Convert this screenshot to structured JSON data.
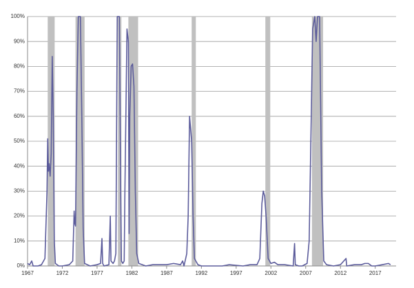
{
  "chart_data": {
    "type": "line",
    "color": "#5b5b9b",
    "recession_color": "#c0c0c0",
    "grid": true,
    "xlim": [
      1967,
      2020
    ],
    "xticks": [
      1967,
      1972,
      1977,
      1982,
      1987,
      1992,
      1997,
      2002,
      2007,
      2012,
      2017
    ],
    "ylim": [
      0,
      100
    ],
    "yticks": [
      {
        "value": 0,
        "label": "0%"
      },
      {
        "value": 10,
        "label": "10%"
      },
      {
        "value": 20,
        "label": "20%"
      },
      {
        "value": 30,
        "label": "30%"
      },
      {
        "value": 40,
        "label": "40%"
      },
      {
        "value": 50,
        "label": "50%"
      },
      {
        "value": 60,
        "label": "60%"
      },
      {
        "value": 70,
        "label": "70%"
      },
      {
        "value": 80,
        "label": "80%"
      },
      {
        "value": 90,
        "label": "90%"
      },
      {
        "value": 100,
        "label": "100%"
      }
    ],
    "recessions": [
      [
        1969.9,
        1970.9
      ],
      [
        1973.9,
        1975.2
      ],
      [
        1980.0,
        1980.5
      ],
      [
        1981.5,
        1982.9
      ],
      [
        1990.6,
        1991.2
      ],
      [
        2001.2,
        2001.9
      ],
      [
        2007.9,
        2009.5
      ]
    ],
    "x": [
      1967.0,
      1967.3,
      1967.6,
      1967.8,
      1968.5,
      1969.0,
      1969.5,
      1969.8,
      1969.9,
      1970.0,
      1970.1,
      1970.25,
      1970.4,
      1970.55,
      1970.7,
      1970.85,
      1971.0,
      1971.5,
      1972.0,
      1973.0,
      1973.5,
      1973.7,
      1973.8,
      1973.9,
      1974.1,
      1974.3,
      1974.6,
      1974.8,
      1975.0,
      1975.2,
      1976.0,
      1977.0,
      1977.5,
      1977.7,
      1977.8,
      1978.0,
      1978.7,
      1978.9,
      1979.0,
      1979.3,
      1979.5,
      1979.7,
      1979.9,
      1980.2,
      1980.4,
      1980.5,
      1980.7,
      1980.9,
      1981.0,
      1981.3,
      1981.5,
      1981.6,
      1981.7,
      1981.9,
      1982.1,
      1982.3,
      1982.5,
      1982.7,
      1983.0,
      1984.0,
      1985.0,
      1987.0,
      1988.0,
      1989.0,
      1989.3,
      1989.5,
      1989.9,
      1990.1,
      1990.3,
      1990.6,
      1990.8,
      1991.0,
      1991.5,
      1992.0,
      1995.0,
      1996.0,
      1998.0,
      1999.0,
      2000.0,
      2000.4,
      2000.7,
      2000.9,
      2001.1,
      2001.3,
      2001.6,
      2002.0,
      2002.5,
      2003.0,
      2004.0,
      2005.2,
      2005.4,
      2005.5,
      2006.0,
      2006.5,
      2007.2,
      2007.5,
      2007.8,
      2008.0,
      2008.3,
      2008.5,
      2008.7,
      2009.0,
      2009.3,
      2009.6,
      2010.0,
      2011.0,
      2012.0,
      2012.8,
      2012.9,
      2014.0,
      2015.0,
      2015.5,
      2016.0,
      2016.5,
      2017.0,
      2018.0,
      2018.9,
      2019.2
    ],
    "values": [
      1,
      0.5,
      2,
      0,
      0,
      0.5,
      3,
      30,
      51,
      38,
      41,
      36,
      45,
      84,
      60,
      10,
      1,
      0,
      0,
      0.5,
      2,
      22,
      17,
      16,
      70,
      100,
      100,
      60,
      15,
      1,
      0,
      0.5,
      1,
      11,
      1,
      0,
      0.5,
      20,
      2,
      1,
      2,
      5,
      100,
      100,
      30,
      2,
      1,
      2,
      30,
      95,
      90,
      13,
      60,
      80,
      81,
      72,
      30,
      5,
      1,
      0,
      0.5,
      0.5,
      1,
      0.5,
      2,
      0,
      5,
      20,
      60,
      50,
      20,
      3,
      0.5,
      0,
      0,
      0.5,
      0,
      0.5,
      0.5,
      3,
      25,
      30,
      28,
      20,
      3,
      1,
      1.5,
      0.5,
      0.5,
      0,
      9,
      0.5,
      0,
      0,
      1,
      10,
      60,
      95,
      100,
      90,
      100,
      100,
      30,
      2,
      0.5,
      0,
      0.5,
      3,
      0,
      0.5,
      0.5,
      1,
      1,
      0,
      0,
      0.5,
      1,
      0.5
    ]
  }
}
